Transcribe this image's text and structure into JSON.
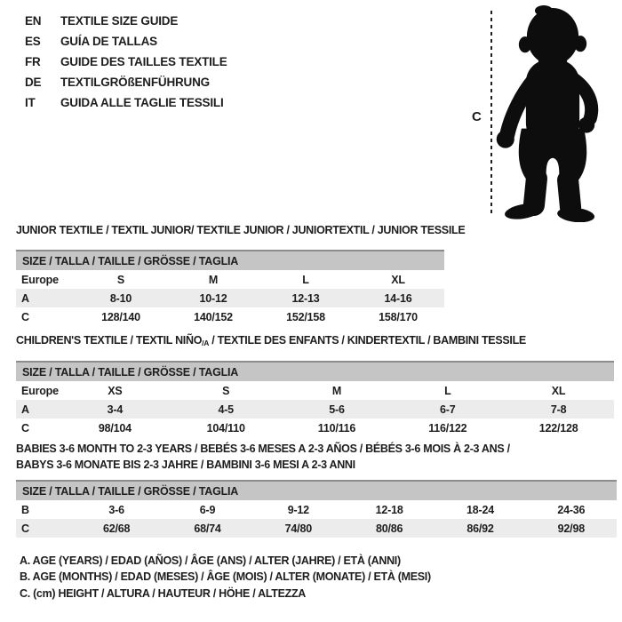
{
  "language_list": [
    {
      "code": "EN",
      "label": "TEXTILE SIZE GUIDE"
    },
    {
      "code": "ES",
      "label": "GUÍA DE TALLAS"
    },
    {
      "code": "FR",
      "label": "GUIDE DES TAILLES TEXTILE"
    },
    {
      "code": "DE",
      "label": "TEXTILGRÖßENFÜHRUNG"
    },
    {
      "code": "IT",
      "label": "GUIDA ALLE TAGLIE TESSILI"
    }
  ],
  "figure": {
    "measure_label": "C",
    "icon": "toddler-silhouette"
  },
  "tables": [
    {
      "id": "junior",
      "title_lines": [
        [
          {
            "text": "JUNIOR TEXTILE / TEXTIL JUNIOR/ TEXTILE JUNIOR / JUNIORTEXTIL / JUNIOR TESSILE"
          }
        ]
      ],
      "header": "SIZE / TALLA / TAILLE / GRÖSSE / TAGLIA",
      "rows": [
        {
          "label": "Europe",
          "values": [
            "S",
            "M",
            "L",
            "XL"
          ],
          "shaded": false
        },
        {
          "label": "A",
          "values": [
            "8-10",
            "10-12",
            "12-13",
            "14-16"
          ],
          "shaded": true
        },
        {
          "label": "C",
          "values": [
            "128/140",
            "140/152",
            "152/158",
            "158/170"
          ],
          "shaded": false
        }
      ]
    },
    {
      "id": "children",
      "title_lines": [
        [
          {
            "text": "CHILDREN'S TEXTILE / TEXTIL NIÑO"
          },
          {
            "text": "/A",
            "sub": true
          },
          {
            "text": " / TEXTILE DES ENFANTS / KINDERTEXTIL / BAMBINI TESSILE"
          }
        ]
      ],
      "header": "SIZE / TALLA / TAILLE / GRÖSSE / TAGLIA",
      "rows": [
        {
          "label": "Europe",
          "values": [
            "XS",
            "S",
            "M",
            "L",
            "XL"
          ],
          "shaded": false
        },
        {
          "label": "A",
          "values": [
            "3-4",
            "4-5",
            "5-6",
            "6-7",
            "7-8"
          ],
          "shaded": true
        },
        {
          "label": "C",
          "values": [
            "98/104",
            "104/110",
            "110/116",
            "116/122",
            "122/128"
          ],
          "shaded": false
        }
      ]
    },
    {
      "id": "babies",
      "title_lines": [
        [
          {
            "text": "BABIES 3-6 MONTH TO 2-3 YEARS / BEBÉS 3-6 MESES A 2-3 AÑOS / BÉBÉS 3-6 MOIS À 2-3 ANS /"
          }
        ],
        [
          {
            "text": "BABYS 3-6 MONATE BIS 2-3 JAHRE / BAMBINI 3-6 MESI A 2-3 ANNI"
          }
        ]
      ],
      "header": "SIZE / TALLA / TAILLE / GRÖSSE / TAGLIA",
      "rows": [
        {
          "label": "B",
          "values": [
            "3-6",
            "6-9",
            "9-12",
            "12-18",
            "18-24",
            "24-36"
          ],
          "shaded": false
        },
        {
          "label": "C",
          "values": [
            "62/68",
            "68/74",
            "74/80",
            "80/86",
            "86/92",
            "92/98"
          ],
          "shaded": true
        }
      ]
    }
  ],
  "legend": [
    "A. AGE (YEARS) / EDAD (AÑOS) / ÂGE (ANS) / ALTER (JAHRE) / ETÀ (ANNI)",
    "B. AGE (MONTHS) / EDAD (MESES) / ÂGE (MOIS) / ALTER (MONATE) / ETÀ (MESI)",
    "C. (cm) HEIGHT / ALTURA / HAUTEUR / HÖHE / ALTEZZA"
  ],
  "colors": {
    "ink": "#1d1d1d",
    "table_header_bg": "#c5c5c5",
    "row_shade_bg": "#ececec",
    "header_top_border": "#8c8c8c",
    "background": "#ffffff"
  }
}
